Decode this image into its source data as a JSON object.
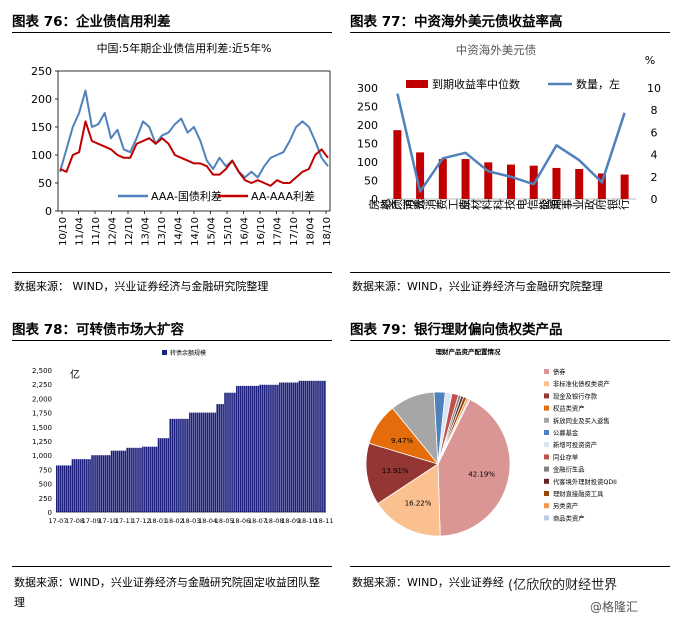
{
  "panels": {
    "p76": {
      "heading": "图表 76：企业债信用利差",
      "source": "数据来源： WIND，兴业证券经济与金融研究院整理"
    },
    "p77": {
      "heading": "图表 77：中资海外美元债收益率高",
      "source": "数据来源：WIND，兴业证券经济与金融研究院整理"
    },
    "p78": {
      "heading": "图表 78：可转债市场大扩容",
      "source_line1": "数据来源：WIND，兴业证券经济与金融研究院固定收益团队整",
      "source_line2": "理"
    },
    "p79": {
      "heading": "图表 79：银行理财偏向债权类产品",
      "source": "数据来源：WIND，兴业证券经"
    }
  },
  "watermark": {
    "text1": "(亿欣欣的财经世界",
    "text2": "@格隆汇"
  },
  "chart_data": [
    {
      "type": "line",
      "title": "中国:5年期企业债信用利差:近5年%",
      "x_ticks": [
        "10/10",
        "11/04",
        "11/10",
        "12/04",
        "12/10",
        "13/04",
        "13/10",
        "14/04",
        "14/10",
        "15/04",
        "15/10",
        "16/04",
        "16/10",
        "17/04",
        "17/10",
        "18/04",
        "18/10"
      ],
      "ylim": [
        0,
        250
      ],
      "y_ticks": [
        0,
        50,
        100,
        150,
        200,
        250
      ],
      "series": [
        {
          "name": "AAA-国债利差",
          "color": "#4f81bd",
          "values": [
            70,
            110,
            150,
            175,
            215,
            150,
            155,
            175,
            130,
            145,
            110,
            105,
            130,
            160,
            150,
            120,
            135,
            140,
            155,
            165,
            140,
            150,
            125,
            90,
            75,
            95,
            80,
            90,
            70,
            60,
            70,
            60,
            80,
            95,
            100,
            105,
            125,
            150,
            160,
            150,
            125,
            95,
            80
          ]
        },
        {
          "name": "AA-AAA利差",
          "color": "#c00000",
          "values": [
            75,
            70,
            100,
            105,
            160,
            125,
            120,
            115,
            110,
            100,
            95,
            95,
            120,
            125,
            130,
            120,
            130,
            120,
            100,
            95,
            90,
            85,
            85,
            80,
            65,
            65,
            75,
            90,
            70,
            55,
            50,
            55,
            50,
            45,
            55,
            50,
            50,
            60,
            70,
            75,
            100,
            110,
            95
          ]
        }
      ]
    },
    {
      "type": "bar",
      "title": "中资海外美元债",
      "categories": [
        "房地产",
        "必须消费",
        "可选消费",
        "工业",
        "原材料",
        "科技",
        "电信",
        "能源",
        "公用事业",
        "政府",
        "银行"
      ],
      "y_left_ticks": [
        0,
        50,
        100,
        150,
        200,
        250,
        300
      ],
      "y_right_label": "%",
      "y_right_ticks": [
        0,
        2,
        4,
        6,
        8,
        10
      ],
      "series": [
        {
          "name": "到期收益率中位数",
          "type": "bar",
          "color": "#c00000",
          "values": [
            6.2,
            4.2,
            3.6,
            3.6,
            3.3,
            3.1,
            3.0,
            2.8,
            2.7,
            2.3,
            2.2
          ]
        },
        {
          "name": "数量，左",
          "type": "line",
          "color": "#4f81bd",
          "values": [
            285,
            20,
            110,
            125,
            75,
            60,
            40,
            145,
            105,
            45,
            233
          ]
        }
      ]
    },
    {
      "type": "bar",
      "title": "转债余额规模",
      "ylabel": "亿",
      "x_ticks": [
        "17-07",
        "17-08",
        "17-09",
        "17-10",
        "17-11",
        "17-12",
        "18-01",
        "18-02",
        "18-03",
        "18-04",
        "18-05",
        "18-06",
        "18-07",
        "18-08",
        "18-09",
        "18-10",
        "18-11"
      ],
      "ylim": [
        0,
        2500
      ],
      "y_ticks": [
        "0",
        "250",
        "500",
        "750",
        "1,000",
        "1,250",
        "1,500",
        "1,750",
        "2,000",
        "2,250",
        "2,500"
      ],
      "segments": [
        {
          "count": 8,
          "value": 820
        },
        {
          "count": 10,
          "value": 930
        },
        {
          "count": 10,
          "value": 1000
        },
        {
          "count": 8,
          "value": 1080
        },
        {
          "count": 8,
          "value": 1130
        },
        {
          "count": 8,
          "value": 1150
        },
        {
          "count": 6,
          "value": 1300
        },
        {
          "count": 10,
          "value": 1640
        },
        {
          "count": 14,
          "value": 1750
        },
        {
          "count": 4,
          "value": 1900
        },
        {
          "count": 6,
          "value": 2100
        },
        {
          "count": 12,
          "value": 2220
        },
        {
          "count": 10,
          "value": 2240
        },
        {
          "count": 10,
          "value": 2280
        },
        {
          "count": 14,
          "value": 2310
        }
      ]
    },
    {
      "type": "pie",
      "title": "理财产品资产配置情况",
      "slices": [
        {
          "label": "债券",
          "value": 42.19,
          "color": "#d99694",
          "text": "42.19%"
        },
        {
          "label": "非标准化债权类资产",
          "value": 16.22,
          "color": "#fac090",
          "text": "16.22%"
        },
        {
          "label": "现金及银行存款",
          "value": 13.91,
          "color": "#943634",
          "text": "13.91%"
        },
        {
          "label": "权益类资产",
          "value": 9.47,
          "color": "#e46c0a",
          "text": "9.47%"
        },
        {
          "label": "拆放同业及买入返售",
          "value": 10.0,
          "color": "#a6a6a6",
          "text": ""
        },
        {
          "label": "公募基金",
          "value": 2.5,
          "color": "#4f81bd",
          "text": ""
        },
        {
          "label": "新增可投资资产",
          "value": 1.5,
          "color": "#dbe5f1",
          "text": ""
        },
        {
          "label": "同业存单",
          "value": 1.5,
          "color": "#c0504d",
          "text": ""
        },
        {
          "label": "金融衍生品",
          "value": 0.6,
          "color": "#7f7f7f",
          "text": ""
        },
        {
          "label": "代客境外理财投资QDII",
          "value": 0.6,
          "color": "#632523",
          "text": ""
        },
        {
          "label": "理财直接融资工具",
          "value": 0.7,
          "color": "#974706",
          "text": ""
        },
        {
          "label": "另类资产",
          "value": 0.5,
          "color": "#f79646",
          "text": ""
        },
        {
          "label": "商品类资产",
          "value": 0.3,
          "color": "#b9cde5",
          "text": ""
        }
      ]
    }
  ]
}
